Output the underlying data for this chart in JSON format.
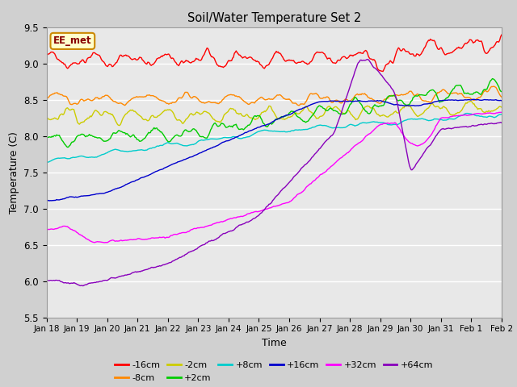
{
  "title": "Soil/Water Temperature Set 2",
  "xlabel": "Time",
  "ylabel": "Temperature (C)",
  "ylim": [
    5.5,
    9.5
  ],
  "xlim": [
    0,
    15
  ],
  "xtick_labels": [
    "Jan 18",
    "Jan 19",
    "Jan 20",
    "Jan 21",
    "Jan 22",
    "Jan 23",
    "Jan 24",
    "Jan 25",
    "Jan 26",
    "Jan 27",
    "Jan 28",
    "Jan 29",
    "Jan 30",
    "Jan 31",
    "Feb 1",
    "Feb 2"
  ],
  "ytick_values": [
    5.5,
    6.0,
    6.5,
    7.0,
    7.5,
    8.0,
    8.5,
    9.0,
    9.5
  ],
  "annotation_text": "EE_met",
  "annotation_bg": "#ffffcc",
  "annotation_border": "#cc8800",
  "fig_bg": "#d0d0d0",
  "plot_bg": "#e8e8e8",
  "grid_color": "#ffffff",
  "series": [
    {
      "label": "-16cm",
      "color": "#ff0000"
    },
    {
      "label": "-8cm",
      "color": "#ff8800"
    },
    {
      "label": "-2cm",
      "color": "#cccc00"
    },
    {
      "label": "+2cm",
      "color": "#00cc00"
    },
    {
      "label": "+8cm",
      "color": "#00cccc"
    },
    {
      "label": "+16cm",
      "color": "#0000cc"
    },
    {
      "label": "+32cm",
      "color": "#ff00ff"
    },
    {
      "label": "+64cm",
      "color": "#8800bb"
    }
  ],
  "n_points": 500,
  "seed": 42
}
